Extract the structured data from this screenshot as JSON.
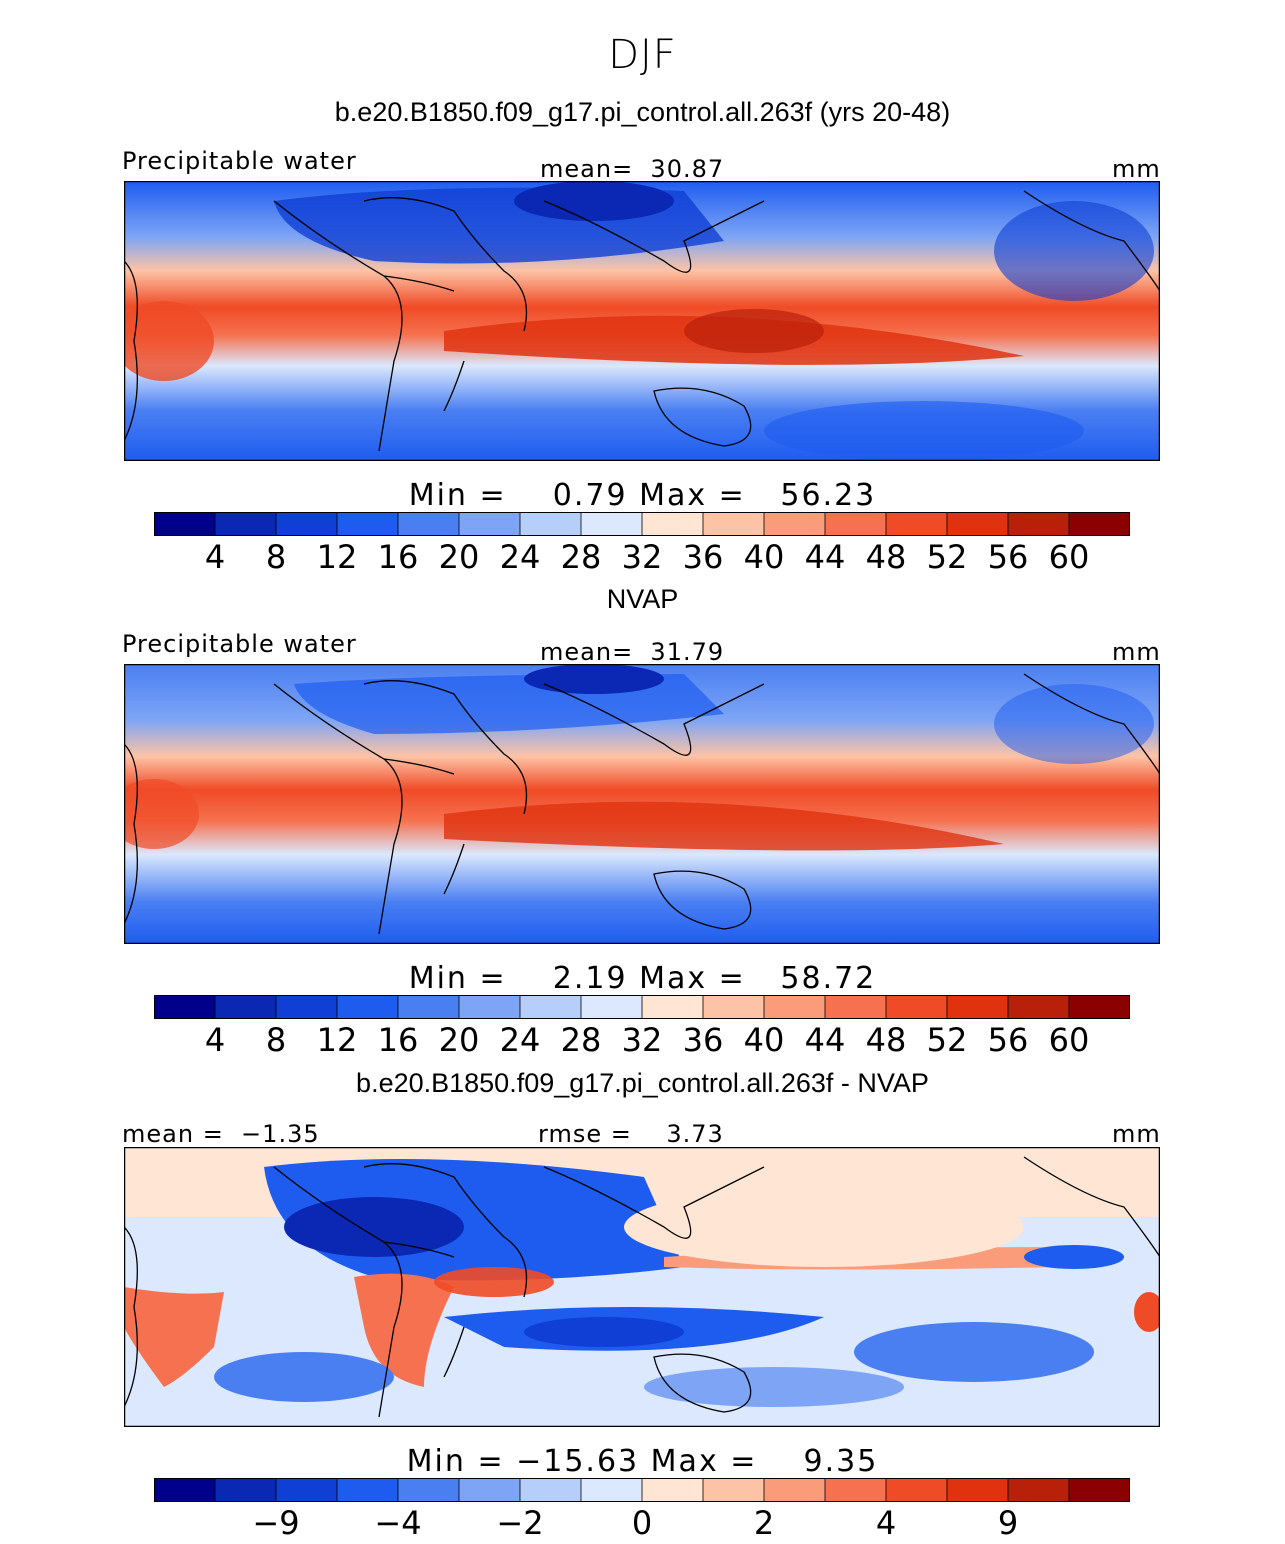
{
  "figure": {
    "season": "DJF"
  },
  "panels": [
    {
      "title": "b.e20.B1850.f09_g17.pi_control.all.263f (yrs 20-48)",
      "left_label": "Precipitable water",
      "center_label": "mean=  30.87",
      "units": "mm",
      "min_max": "Min =    0.79 Max =   56.23",
      "colorbar_ticks": [
        "4",
        "8",
        "12",
        "16",
        "20",
        "24",
        "28",
        "32",
        "36",
        "40",
        "44",
        "48",
        "52",
        "56",
        "60"
      ]
    },
    {
      "title": "NVAP",
      "left_label": "Precipitable water",
      "center_label": "mean=  31.79",
      "units": "mm",
      "min_max": "Min =    2.19 Max =   58.72",
      "colorbar_ticks": [
        "4",
        "8",
        "12",
        "16",
        "20",
        "24",
        "28",
        "32",
        "36",
        "40",
        "44",
        "48",
        "52",
        "56",
        "60"
      ]
    },
    {
      "title": "b.e20.B1850.f09_g17.pi_control.all.263f - NVAP",
      "left_label": "mean =  −1.35",
      "center_label": "rmse =    3.73",
      "units": "mm",
      "min_max": "Min = −15.63 Max =    9.35",
      "colorbar_ticks": [
        "−9",
        "−4",
        "−2",
        "0",
        "2",
        "4",
        "9"
      ]
    }
  ],
  "colors": {
    "palette": [
      "#00008b",
      "#0a28b4",
      "#0f3fd4",
      "#1e5cf0",
      "#4a7ff2",
      "#7ea5f5",
      "#b5cefa",
      "#dbe8fd",
      "#ffe5d4",
      "#fdc3a6",
      "#fa9b7a",
      "#f6714f",
      "#ef4b26",
      "#e0320f",
      "#b9200a",
      "#8b0000"
    ]
  },
  "chart_data": [
    {
      "type": "heatmap",
      "title": "b.e20.B1850.f09_g17.pi_control.all.263f (yrs 20-48)",
      "variable": "Precipitable water",
      "units": "mm",
      "mean": 30.87,
      "min": 0.79,
      "max": 56.23,
      "contour_levels": [
        4,
        8,
        12,
        16,
        20,
        24,
        28,
        32,
        36,
        40,
        44,
        48,
        52,
        56,
        60
      ]
    },
    {
      "type": "heatmap",
      "title": "NVAP",
      "variable": "Precipitable water",
      "units": "mm",
      "mean": 31.79,
      "min": 2.19,
      "max": 58.72,
      "contour_levels": [
        4,
        8,
        12,
        16,
        20,
        24,
        28,
        32,
        36,
        40,
        44,
        48,
        52,
        56,
        60
      ]
    },
    {
      "type": "heatmap",
      "title": "b.e20.B1850.f09_g17.pi_control.all.263f - NVAP",
      "units": "mm",
      "mean": -1.35,
      "rmse": 3.73,
      "min": -15.63,
      "max": 9.35,
      "contour_levels": [
        -9,
        -4,
        -2,
        0,
        2,
        4,
        9
      ]
    }
  ]
}
